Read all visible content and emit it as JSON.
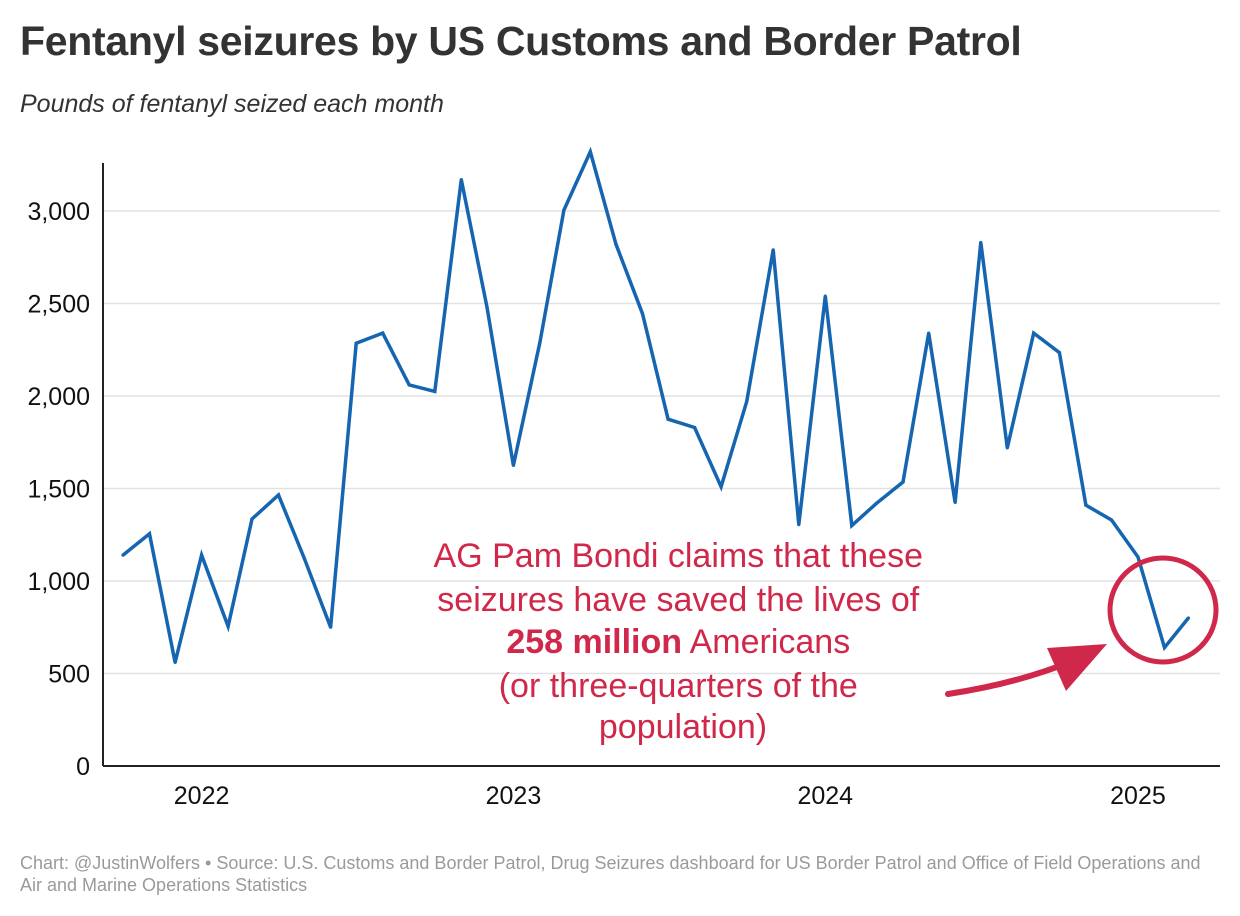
{
  "title": "Fentanyl seizures by US Customs and Border Patrol",
  "subtitle": "Pounds of fentanyl seized each month",
  "footer": {
    "credit": "Chart: @JustinWolfers",
    "separator": "•",
    "source": "Source: U.S. Customs and Border Patrol, Drug Seizures dashboard for US Border Patrol and Office of Field Operations and Air and Marine Operations Statistics"
  },
  "annotation": {
    "line1": "AG Pam Bondi claims that these",
    "line2": "seizures have saved the lives of",
    "line3_bold": "258 million",
    "line3_rest": " Americans",
    "line4": "(or three-quarters of the",
    "line5": "population)"
  },
  "colors": {
    "line": "#1565b0",
    "annotation": "#d0284a",
    "axis": "#222222",
    "grid": "#e2e2e2",
    "text": "#333333",
    "footer": "#9a9a9a"
  },
  "chart_data": {
    "type": "line",
    "title": "Fentanyl seizures by US Customs and Border Patrol",
    "subtitle": "Pounds of fentanyl seized each month",
    "xlabel": "",
    "ylabel": "",
    "ylim": [
      0,
      3330
    ],
    "grid": "horizontal",
    "y_ticks": [
      0,
      500,
      1000,
      1500,
      2000,
      2500,
      3000
    ],
    "y_tick_labels": [
      "0",
      "500",
      "1,000",
      "1,500",
      "2,000",
      "2,500",
      "3,000"
    ],
    "x_ticks": [
      "2022-01",
      "2023-01",
      "2024-01",
      "2025-01"
    ],
    "x_tick_labels": [
      "2022",
      "2023",
      "2024",
      "2025"
    ],
    "series": [
      {
        "x": [
          "2021-10",
          "2021-11",
          "2021-12",
          "2022-01",
          "2022-02",
          "2022-03",
          "2022-04",
          "2022-05",
          "2022-06",
          "2022-07",
          "2022-08",
          "2022-09",
          "2022-10",
          "2022-11",
          "2022-12",
          "2023-01",
          "2023-02",
          "2023-03",
          "2023-04",
          "2023-05",
          "2023-06",
          "2023-07",
          "2023-08",
          "2023-09",
          "2023-10",
          "2023-11",
          "2023-12",
          "2024-01",
          "2024-02",
          "2024-03",
          "2024-04",
          "2024-05",
          "2024-06",
          "2024-07",
          "2024-08",
          "2024-09",
          "2024-10",
          "2024-11",
          "2024-12",
          "2025-01",
          "2025-02",
          "2025-03"
        ],
        "values": [
          1140,
          1255,
          560,
          1140,
          755,
          1335,
          1465,
          1125,
          750,
          2285,
          2340,
          2060,
          2025,
          3170,
          2480,
          1625,
          2290,
          3005,
          3320,
          2820,
          2445,
          1875,
          1830,
          1510,
          1970,
          2790,
          1305,
          2540,
          1300,
          1420,
          1535,
          2340,
          1425,
          2830,
          1720,
          2340,
          2235,
          1410,
          1330,
          1130,
          640,
          800
        ]
      }
    ]
  }
}
